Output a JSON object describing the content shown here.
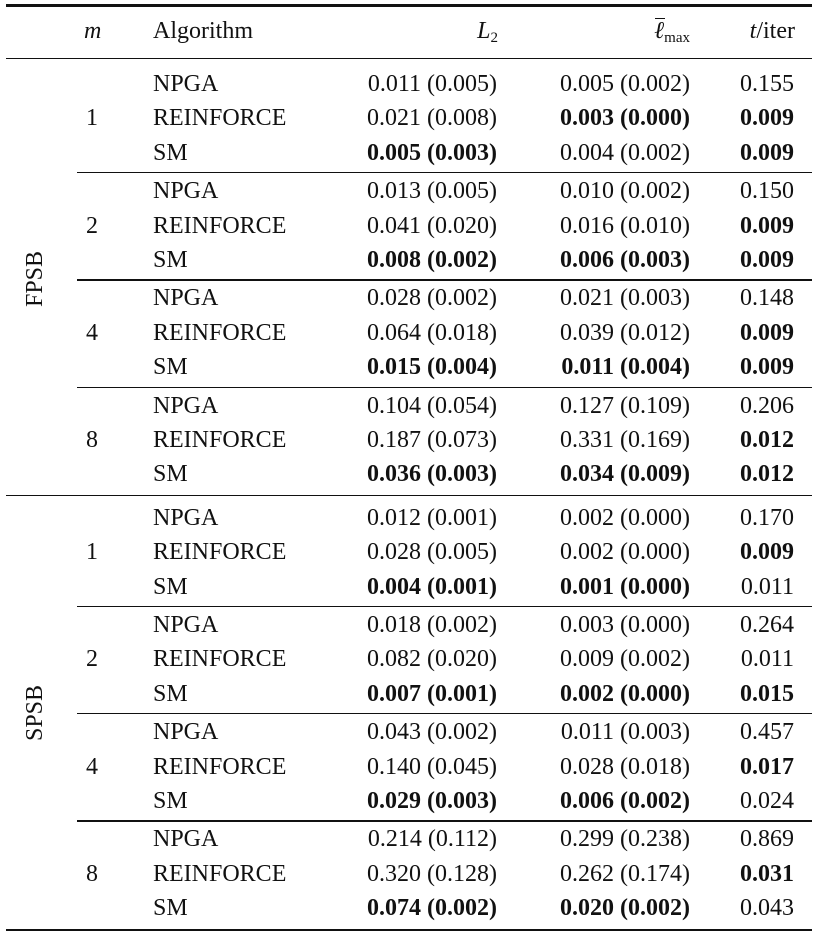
{
  "header": {
    "m": "m",
    "algorithm": "Algorithm",
    "l2_base": "L",
    "l2_sub": "2",
    "lmax_base": "ℓ",
    "lmax_sub": "max",
    "t_base": "t",
    "t_rest": "/iter"
  },
  "groups": [
    {
      "label": "FPSB",
      "blocks": [
        {
          "m": "1",
          "rows": [
            {
              "alg": "NPGA",
              "l2": "0.011 (0.005)",
              "lmax": "0.005 (0.002)",
              "t": "0.155",
              "l2_bold": false,
              "lmax_bold": false,
              "t_bold": false
            },
            {
              "alg": "REINFORCE",
              "l2": "0.021 (0.008)",
              "lmax": "0.003 (0.000)",
              "t": "0.009",
              "l2_bold": false,
              "lmax_bold": true,
              "t_bold": true
            },
            {
              "alg": "SM",
              "l2": "0.005 (0.003)",
              "lmax": "0.004 (0.002)",
              "t": "0.009",
              "l2_bold": true,
              "lmax_bold": false,
              "t_bold": true
            }
          ]
        },
        {
          "m": "2",
          "rows": [
            {
              "alg": "NPGA",
              "l2": "0.013 (0.005)",
              "lmax": "0.010 (0.002)",
              "t": "0.150",
              "l2_bold": false,
              "lmax_bold": false,
              "t_bold": false
            },
            {
              "alg": "REINFORCE",
              "l2": "0.041 (0.020)",
              "lmax": "0.016 (0.010)",
              "t": "0.009",
              "l2_bold": false,
              "lmax_bold": false,
              "t_bold": true
            },
            {
              "alg": "SM",
              "l2": "0.008 (0.002)",
              "lmax": "0.006 (0.003)",
              "t": "0.009",
              "l2_bold": true,
              "lmax_bold": true,
              "t_bold": true
            }
          ]
        },
        {
          "m": "4",
          "rows": [
            {
              "alg": "NPGA",
              "l2": "0.028 (0.002)",
              "lmax": "0.021 (0.003)",
              "t": "0.148",
              "l2_bold": false,
              "lmax_bold": false,
              "t_bold": false
            },
            {
              "alg": "REINFORCE",
              "l2": "0.064 (0.018)",
              "lmax": "0.039 (0.012)",
              "t": "0.009",
              "l2_bold": false,
              "lmax_bold": false,
              "t_bold": true
            },
            {
              "alg": "SM",
              "l2": "0.015 (0.004)",
              "lmax": "0.011 (0.004)",
              "t": "0.009",
              "l2_bold": true,
              "lmax_bold": true,
              "t_bold": true
            }
          ]
        },
        {
          "m": "8",
          "rows": [
            {
              "alg": "NPGA",
              "l2": "0.104 (0.054)",
              "lmax": "0.127 (0.109)",
              "t": "0.206",
              "l2_bold": false,
              "lmax_bold": false,
              "t_bold": false
            },
            {
              "alg": "REINFORCE",
              "l2": "0.187 (0.073)",
              "lmax": "0.331 (0.169)",
              "t": "0.012",
              "l2_bold": false,
              "lmax_bold": false,
              "t_bold": true
            },
            {
              "alg": "SM",
              "l2": "0.036 (0.003)",
              "lmax": "0.034 (0.009)",
              "t": "0.012",
              "l2_bold": true,
              "lmax_bold": true,
              "t_bold": true
            }
          ]
        }
      ]
    },
    {
      "label": "SPSB",
      "blocks": [
        {
          "m": "1",
          "rows": [
            {
              "alg": "NPGA",
              "l2": "0.012 (0.001)",
              "lmax": "0.002 (0.000)",
              "t": "0.170",
              "l2_bold": false,
              "lmax_bold": false,
              "t_bold": false
            },
            {
              "alg": "REINFORCE",
              "l2": "0.028 (0.005)",
              "lmax": "0.002 (0.000)",
              "t": "0.009",
              "l2_bold": false,
              "lmax_bold": false,
              "t_bold": true
            },
            {
              "alg": "SM",
              "l2": "0.004 (0.001)",
              "lmax": "0.001 (0.000)",
              "t": "0.011",
              "l2_bold": true,
              "lmax_bold": true,
              "t_bold": false
            }
          ]
        },
        {
          "m": "2",
          "rows": [
            {
              "alg": "NPGA",
              "l2": "0.018 (0.002)",
              "lmax": "0.003 (0.000)",
              "t": "0.264",
              "l2_bold": false,
              "lmax_bold": false,
              "t_bold": false
            },
            {
              "alg": "REINFORCE",
              "l2": "0.082 (0.020)",
              "lmax": "0.009 (0.002)",
              "t": "0.011",
              "l2_bold": false,
              "lmax_bold": false,
              "t_bold": false
            },
            {
              "alg": "SM",
              "l2": "0.007 (0.001)",
              "lmax": "0.002 (0.000)",
              "t": "0.015",
              "l2_bold": true,
              "lmax_bold": true,
              "t_bold": true
            }
          ]
        },
        {
          "m": "4",
          "rows": [
            {
              "alg": "NPGA",
              "l2": "0.043 (0.002)",
              "lmax": "0.011 (0.003)",
              "t": "0.457",
              "l2_bold": false,
              "lmax_bold": false,
              "t_bold": false
            },
            {
              "alg": "REINFORCE",
              "l2": "0.140 (0.045)",
              "lmax": "0.028 (0.018)",
              "t": "0.017",
              "l2_bold": false,
              "lmax_bold": false,
              "t_bold": true
            },
            {
              "alg": "SM",
              "l2": "0.029 (0.003)",
              "lmax": "0.006 (0.002)",
              "t": "0.024",
              "l2_bold": true,
              "lmax_bold": true,
              "t_bold": false
            }
          ]
        },
        {
          "m": "8",
          "rows": [
            {
              "alg": "NPGA",
              "l2": "0.214 (0.112)",
              "lmax": "0.299 (0.238)",
              "t": "0.869",
              "l2_bold": false,
              "lmax_bold": false,
              "t_bold": false
            },
            {
              "alg": "REINFORCE",
              "l2": "0.320 (0.128)",
              "lmax": "0.262 (0.174)",
              "t": "0.031",
              "l2_bold": false,
              "lmax_bold": false,
              "t_bold": true
            },
            {
              "alg": "SM",
              "l2": "0.074 (0.002)",
              "lmax": "0.020 (0.002)",
              "t": "0.043",
              "l2_bold": true,
              "lmax_bold": true,
              "t_bold": false
            }
          ]
        }
      ]
    }
  ]
}
